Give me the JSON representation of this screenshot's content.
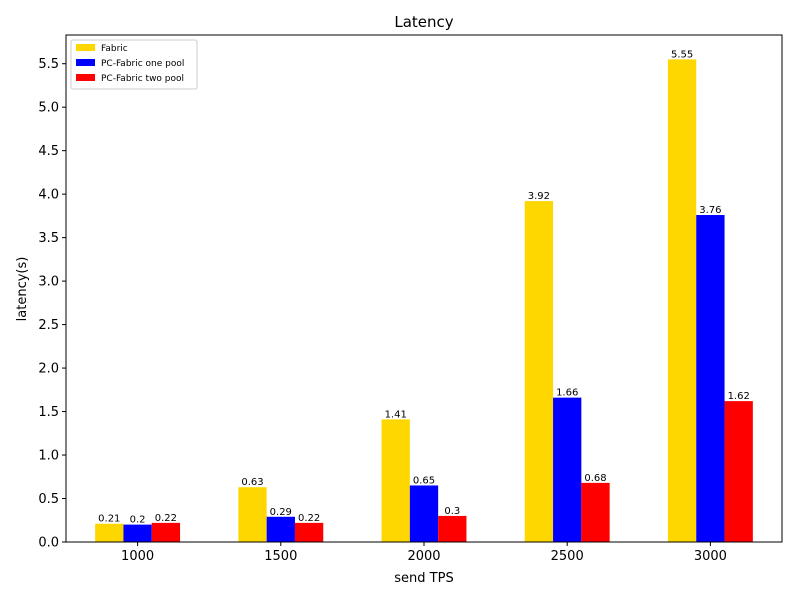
{
  "chart_data": {
    "type": "bar",
    "title": "Latency",
    "xlabel": "send TPS",
    "ylabel": "latency(s)",
    "categories": [
      "1000",
      "1500",
      "2000",
      "2500",
      "3000"
    ],
    "series": [
      {
        "name": "Fabric",
        "color": "#ffd700",
        "values": [
          0.21,
          0.63,
          1.41,
          3.92,
          5.55
        ],
        "labels": [
          "0.21",
          "0.63",
          "1.41",
          "3.92",
          "5.55"
        ]
      },
      {
        "name": "PC-Fabric one pool",
        "color": "#0000ff",
        "values": [
          0.2,
          0.29,
          0.65,
          1.66,
          3.76
        ],
        "labels": [
          "0.2",
          "0.29",
          "0.65",
          "1.66",
          "3.76"
        ]
      },
      {
        "name": "PC-Fabric two pool",
        "color": "#ff0000",
        "values": [
          0.22,
          0.22,
          0.3,
          0.68,
          1.62
        ],
        "labels": [
          "0.22",
          "0.22",
          "0.3",
          "0.68",
          "1.62"
        ]
      }
    ],
    "ylim": [
      0,
      5.83
    ],
    "yticks": [
      "0.0",
      "0.5",
      "1.0",
      "1.5",
      "2.0",
      "2.5",
      "3.0",
      "3.5",
      "4.0",
      "4.5",
      "5.0",
      "5.5"
    ],
    "grid": false,
    "legend_position": "top-left"
  }
}
